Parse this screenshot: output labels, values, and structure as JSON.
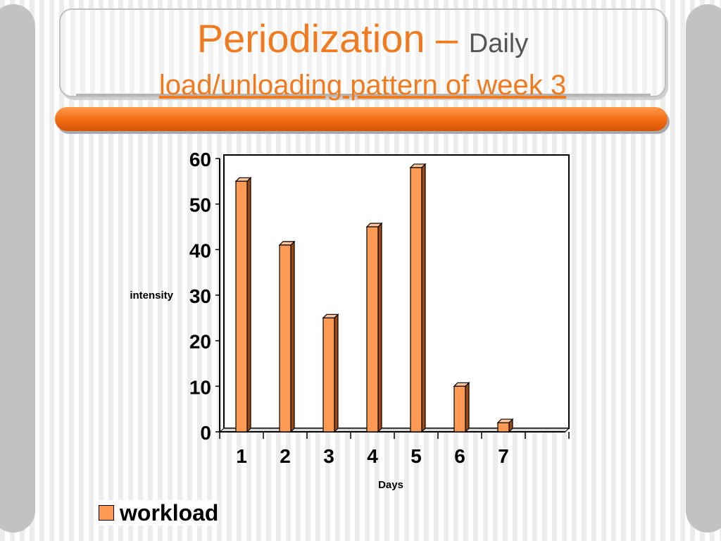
{
  "slide": {
    "title_main": "Periodization –",
    "title_sub": "Daily",
    "title_line2": "load/unloading pattern of week 3",
    "title_color": "#f07a1e",
    "bar_color": "#f26a12"
  },
  "legend": {
    "label": "workload"
  },
  "chart_data": {
    "type": "bar",
    "categories": [
      "1",
      "2",
      "3",
      "4",
      "5",
      "6",
      "7"
    ],
    "series": [
      {
        "name": "workload",
        "values": [
          55,
          41,
          25,
          45,
          58,
          10,
          2
        ],
        "color": "#ff9a55"
      }
    ],
    "xlabel": "Days",
    "ylabel": "intensity",
    "ylim": [
      0,
      60
    ],
    "yticks": [
      0,
      10,
      20,
      30,
      40,
      50,
      60
    ],
    "grid": false,
    "legend_position": "bottom-left",
    "style": "3d-columns"
  }
}
